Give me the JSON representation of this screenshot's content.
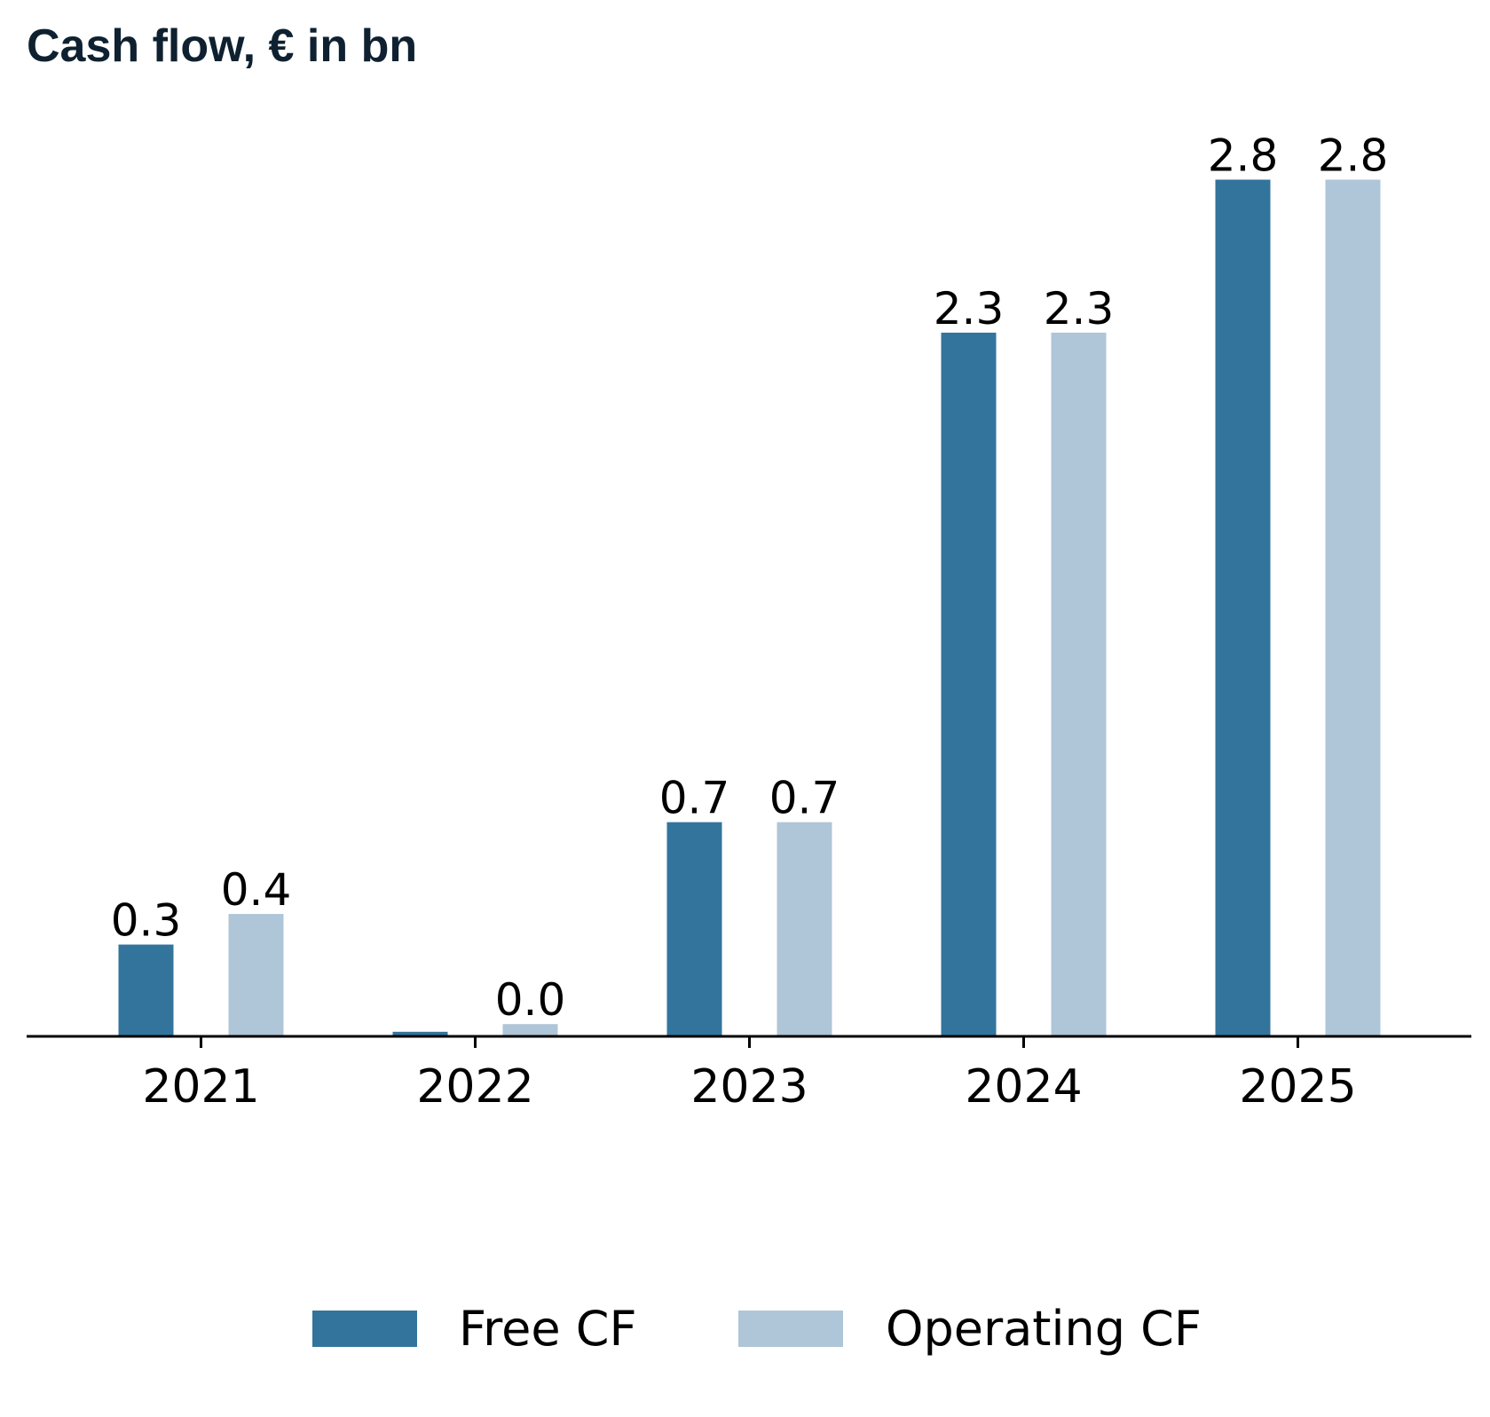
{
  "chart_data": {
    "type": "bar",
    "title": "Cash flow, € in bn",
    "categories": [
      "2021",
      "2022",
      "2023",
      "2024",
      "2025"
    ],
    "series": [
      {
        "name": "Free CF",
        "color": "#33749c",
        "values": [
          0.3,
          0.015,
          0.7,
          2.3,
          2.8
        ],
        "labels": [
          "0.3",
          "",
          "0.7",
          "2.3",
          "2.8"
        ]
      },
      {
        "name": "Operating CF",
        "color": "#afc5d8",
        "values": [
          0.4,
          0.04,
          0.7,
          2.3,
          2.8
        ],
        "labels": [
          "0.4",
          "0.0",
          "0.7",
          "2.3",
          "2.8"
        ]
      }
    ],
    "xlabel": "",
    "ylabel": "",
    "ylim": [
      0,
      2.9
    ],
    "grid": false,
    "legend_position": "bottom-center"
  }
}
